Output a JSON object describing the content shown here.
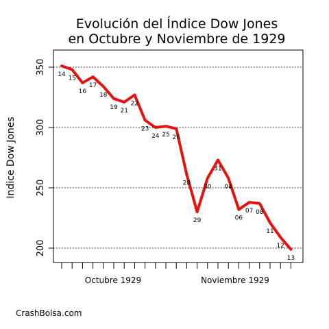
{
  "chart_data": {
    "type": "line",
    "title_lines": [
      "Evolución del Índice Dow Jones",
      "en Octubre y Noviembre de 1929"
    ],
    "ylabel": "Indice Dow Jones",
    "xlabel": "",
    "ylim": [
      188,
      356
    ],
    "yticks": [
      200,
      250,
      300,
      350
    ],
    "grid": "horizontal-dotted",
    "line_color": "#e8120c",
    "month_labels": [
      "Octubre 1929",
      "Noviembre 1929"
    ],
    "points": [
      {
        "label": "14",
        "value": 351
      },
      {
        "label": "15",
        "value": 348
      },
      {
        "label": "16",
        "value": 337
      },
      {
        "label": "17",
        "value": 342
      },
      {
        "label": "18",
        "value": 334
      },
      {
        "label": "19",
        "value": 324
      },
      {
        "label": "21",
        "value": 321
      },
      {
        "label": "22",
        "value": 327
      },
      {
        "label": "23",
        "value": 306
      },
      {
        "label": "24",
        "value": 300
      },
      {
        "label": "25",
        "value": 301
      },
      {
        "label": "26",
        "value": 299
      },
      {
        "label": "28",
        "value": 261
      },
      {
        "label": "29",
        "value": 230
      },
      {
        "label": "30",
        "value": 258
      },
      {
        "label": "31",
        "value": 273
      },
      {
        "label": "04",
        "value": 258
      },
      {
        "label": "06",
        "value": 232
      },
      {
        "label": "07",
        "value": 238
      },
      {
        "label": "08",
        "value": 237
      },
      {
        "label": "11",
        "value": 221
      },
      {
        "label": "12",
        "value": 209
      },
      {
        "label": "13",
        "value": 199
      }
    ]
  },
  "footer": {
    "credit": "CrashBolsa.com"
  }
}
